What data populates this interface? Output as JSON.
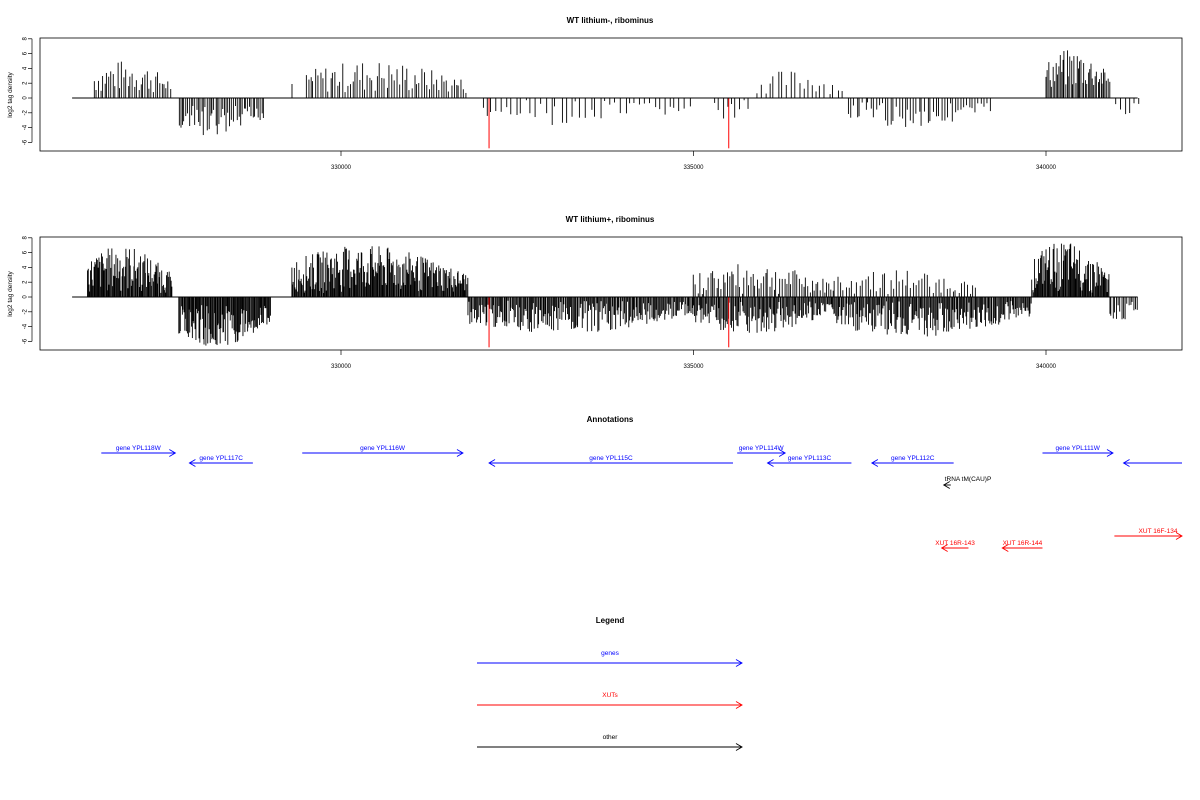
{
  "chart_data": [
    {
      "type": "bar",
      "title": "WT lithium-, ribominus",
      "xlabel": "",
      "ylabel": "log2 tag density",
      "xlim": [
        326200,
        341400
      ],
      "ylim": [
        -7,
        8
      ],
      "xticks": [
        "330000",
        "335000",
        "340000"
      ],
      "xtick_values": [
        330000,
        335000,
        340000
      ],
      "yticks": [
        "-6",
        "-4",
        "-2",
        "0",
        "2",
        "4",
        "6",
        "8"
      ],
      "ytick_values": [
        -6,
        -4,
        -2,
        0,
        2,
        4,
        6,
        8
      ],
      "baseline_range": [
        326200,
        341300
      ],
      "red_marks": [
        {
          "x": 332100,
          "value": -6.8
        },
        {
          "x": 335500,
          "value": -6.8
        }
      ],
      "density_segments": [
        {
          "start": 326500,
          "end": 327600,
          "sign": 1,
          "min": 0.5,
          "max": 5.1,
          "step": 30
        },
        {
          "start": 327700,
          "end": 328900,
          "sign": -1,
          "min": 1.0,
          "max": 5.5,
          "step": 25
        },
        {
          "start": 329300,
          "end": 329300,
          "sign": 1,
          "min": 1.9,
          "max": 1.9,
          "step": 40
        },
        {
          "start": 329500,
          "end": 331800,
          "sign": 1,
          "min": 0.5,
          "max": 5.1,
          "step": 35
        },
        {
          "start": 332000,
          "end": 335000,
          "sign": -1,
          "min": 0.3,
          "max": 3.8,
          "step": 70
        },
        {
          "start": 335300,
          "end": 335800,
          "sign": -1,
          "min": 0.3,
          "max": 3.5,
          "step": 60
        },
        {
          "start": 335900,
          "end": 337100,
          "sign": 1,
          "min": 0.5,
          "max": 3.8,
          "step": 60
        },
        {
          "start": 337200,
          "end": 339200,
          "sign": -1,
          "min": 0.5,
          "max": 4.0,
          "step": 40
        },
        {
          "start": 340000,
          "end": 340900,
          "sign": 1,
          "min": 1.0,
          "max": 6.6,
          "step": 20
        },
        {
          "start": 341000,
          "end": 341300,
          "sign": -1,
          "min": 0.5,
          "max": 2.5,
          "step": 60
        }
      ]
    },
    {
      "type": "bar",
      "title": "WT lithium+, ribominus",
      "xlabel": "",
      "ylabel": "log2 tag density",
      "xlim": [
        326200,
        341400
      ],
      "ylim": [
        -7,
        8
      ],
      "xticks": [
        "330000",
        "335000",
        "340000"
      ],
      "xtick_values": [
        330000,
        335000,
        340000
      ],
      "yticks": [
        "-6",
        "-4",
        "-2",
        "0",
        "2",
        "4",
        "6",
        "8"
      ],
      "ytick_values": [
        -6,
        -4,
        -2,
        0,
        2,
        4,
        6,
        8
      ],
      "baseline_range": [
        326200,
        341300
      ],
      "red_marks": [
        {
          "x": 332100,
          "value": -6.8
        },
        {
          "x": 335500,
          "value": -6.8
        }
      ],
      "density_segments": [
        {
          "start": 326400,
          "end": 327600,
          "sign": 1,
          "min": 0.5,
          "max": 7.0,
          "step": 12
        },
        {
          "start": 327700,
          "end": 329000,
          "sign": -1,
          "min": 1.0,
          "max": 6.8,
          "step": 12
        },
        {
          "start": 329300,
          "end": 331800,
          "sign": 1,
          "min": 0.5,
          "max": 7.0,
          "step": 12
        },
        {
          "start": 331800,
          "end": 335000,
          "sign": -1,
          "min": 0.5,
          "max": 5.0,
          "step": 15
        },
        {
          "start": 335000,
          "end": 337000,
          "sign": 1,
          "min": 0.3,
          "max": 4.5,
          "step": 30
        },
        {
          "start": 335000,
          "end": 337000,
          "sign": -1,
          "min": 0.5,
          "max": 5.0,
          "step": 15
        },
        {
          "start": 337000,
          "end": 339800,
          "sign": -1,
          "min": 0.5,
          "max": 5.5,
          "step": 15
        },
        {
          "start": 337000,
          "end": 339000,
          "sign": 1,
          "min": 0.3,
          "max": 3.8,
          "step": 40
        },
        {
          "start": 339800,
          "end": 340900,
          "sign": 1,
          "min": 0.5,
          "max": 7.4,
          "step": 12
        },
        {
          "start": 340900,
          "end": 341300,
          "sign": -1,
          "min": 0.5,
          "max": 3.5,
          "step": 25
        }
      ]
    }
  ],
  "annotations": {
    "title": "Annotations",
    "features": [
      {
        "label": "gene YPL118W",
        "strand": "+",
        "start": 326600,
        "end": 327650,
        "row": 0,
        "kind": "gene"
      },
      {
        "label": "gene YPL117C",
        "strand": "-",
        "start": 327850,
        "end": 328750,
        "row": 1,
        "kind": "gene"
      },
      {
        "label": "gene YPL116W",
        "strand": "+",
        "start": 329450,
        "end": 331730,
        "row": 0,
        "kind": "gene"
      },
      {
        "label": "gene YPL115C",
        "strand": "-",
        "start": 332100,
        "end": 335560,
        "row": 1,
        "kind": "gene"
      },
      {
        "label": "gene YPL114W",
        "strand": "+",
        "start": 335620,
        "end": 336300,
        "row": 0,
        "kind": "gene"
      },
      {
        "label": "gene YPL113C",
        "strand": "-",
        "start": 336050,
        "end": 337240,
        "row": 1,
        "kind": "gene"
      },
      {
        "label": "gene YPL112C",
        "strand": "-",
        "start": 337530,
        "end": 338690,
        "row": 1,
        "kind": "gene"
      },
      {
        "label": "gene YPL111W",
        "strand": "+",
        "start": 339950,
        "end": 340950,
        "row": 0,
        "kind": "gene"
      },
      {
        "label": "",
        "strand": "-",
        "start": 341100,
        "end": 341970,
        "row": 1,
        "kind": "gene"
      },
      {
        "label": "tRNA tM(CAU)P",
        "strand": "-",
        "start": 338550,
        "end": 338650,
        "row": 2,
        "kind": "other"
      },
      {
        "label": "XUT 16R-143",
        "strand": "-",
        "start": 338520,
        "end": 338900,
        "row": 4,
        "kind": "xut"
      },
      {
        "label": "XUT 16R-144",
        "strand": "-",
        "start": 339380,
        "end": 339950,
        "row": 4,
        "kind": "xut"
      },
      {
        "label": "XUT 16F-134",
        "strand": "+",
        "start": 340970,
        "end": 341970,
        "row": 3,
        "kind": "xut"
      }
    ]
  },
  "legend": {
    "title": "Legend",
    "items": [
      {
        "label": "genes",
        "color": "#0000ff"
      },
      {
        "label": "XUTs",
        "color": "#ff0000"
      },
      {
        "label": "other",
        "color": "#000000"
      }
    ]
  },
  "colors": {
    "gene": "#0000ff",
    "xut": "#ff0000",
    "other": "#000000",
    "bar": "#000000",
    "red_mark": "#ff0000"
  }
}
